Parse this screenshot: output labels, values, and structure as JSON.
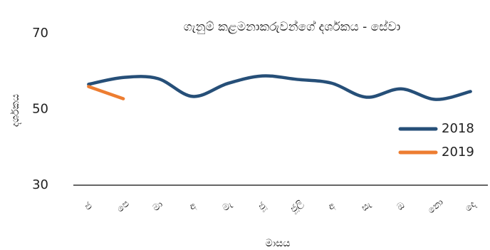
{
  "chart_data": {
    "type": "line",
    "title": "ගැනුම් කළමනාකරුවන්ගේ දර්ශකය - සේවා",
    "x_label": "මාසය",
    "y_label": "දර්ශකය",
    "categories": [
      "ජ",
      "පෙ",
      "මා",
      "අ",
      "මැ",
      "ජූ",
      "ජූලි",
      "අ",
      "සැ",
      "ඔ",
      "නො",
      "දෙ"
    ],
    "series": [
      {
        "name": "2018",
        "color": "#264f78",
        "values": [
          56.6,
          58.4,
          58.1,
          53.4,
          56.8,
          58.8,
          57.9,
          56.9,
          53.2,
          55.4,
          52.6,
          54.7
        ]
      },
      {
        "name": "2019",
        "color": "#ed7d31",
        "values": [
          56.0,
          52.8,
          null,
          null,
          null,
          null,
          null,
          null,
          null,
          null,
          null,
          null
        ]
      }
    ],
    "ylim": [
      30,
      70
    ],
    "yticks": [
      30,
      50,
      70
    ],
    "grid": false,
    "legend": "right"
  }
}
